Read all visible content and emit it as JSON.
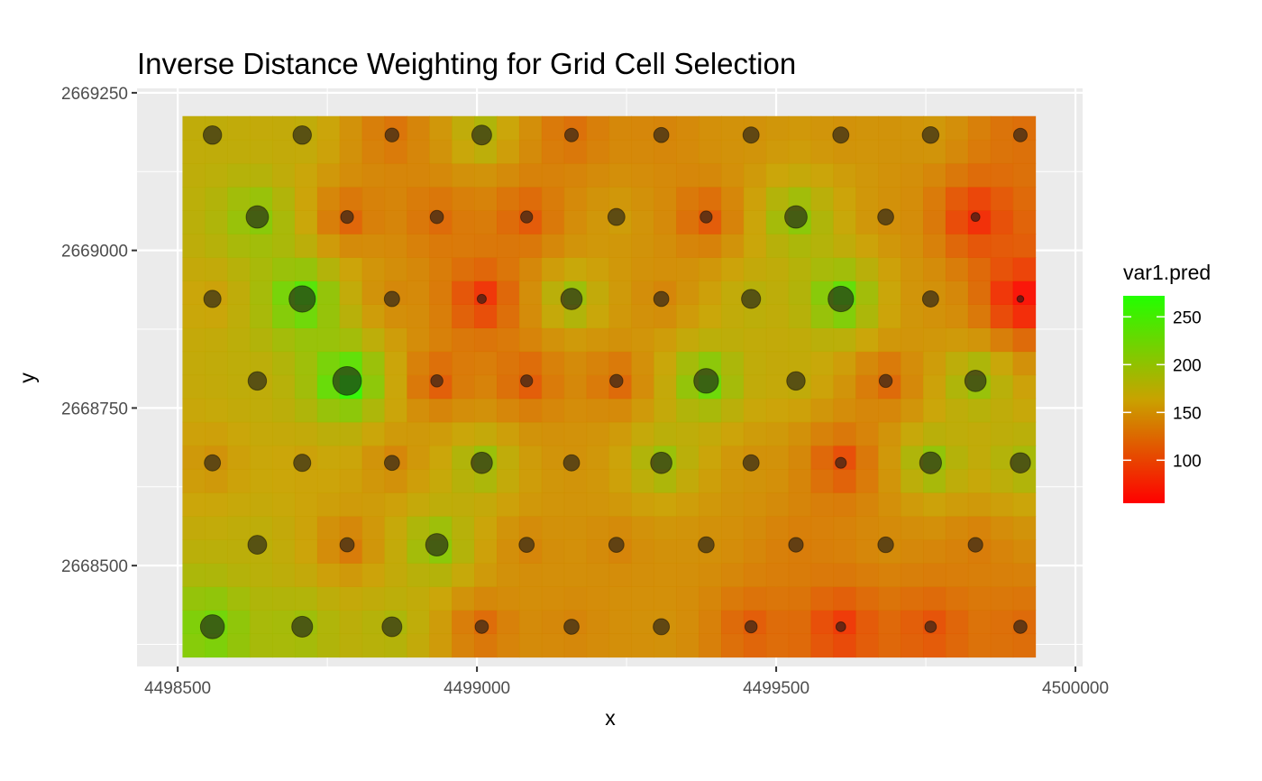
{
  "chart_data": {
    "type": "heatmap",
    "title": "Inverse Distance Weighting for Grid Cell Selection",
    "xlabel": "x",
    "ylabel": "y",
    "xlim": [
      4498432,
      4500012
    ],
    "ylim": [
      2668340,
      2669257
    ],
    "x_ticks": [
      4498500,
      4499000,
      4499500,
      4500000
    ],
    "y_ticks": [
      2668500,
      2668750,
      2669000,
      2669250
    ],
    "x_tick_labels": [
      "4498500",
      "4499000",
      "4499500",
      "4500000"
    ],
    "y_tick_labels": [
      "2668500",
      "2668750",
      "2669000",
      "2669250"
    ],
    "grid_extent": {
      "x": [
        4498508,
        4499933
      ],
      "y": [
        2668355,
        2669213
      ]
    },
    "grid_cols": 38,
    "grid_rows": 23,
    "legend": {
      "title": "var1.pred",
      "range": [
        55,
        272
      ],
      "ticks": [
        100,
        150,
        200,
        250
      ],
      "tick_labels": [
        "100",
        "150",
        "200",
        "250"
      ],
      "low_color": "#ff0000",
      "mid_color": "#c9a200",
      "high_color": "#22ff00"
    },
    "grid_on": true,
    "legend_position": "right",
    "panel_background": "#ebebeb",
    "point_color": "#1a1a1a",
    "points": [
      {
        "x": 4498558,
        "y": 2669183,
        "value": 172
      },
      {
        "x": 4498708,
        "y": 2669183,
        "value": 172
      },
      {
        "x": 4498858,
        "y": 2669183,
        "value": 128
      },
      {
        "x": 4499008,
        "y": 2669183,
        "value": 185
      },
      {
        "x": 4499158,
        "y": 2669183,
        "value": 125
      },
      {
        "x": 4499308,
        "y": 2669183,
        "value": 140
      },
      {
        "x": 4499458,
        "y": 2669183,
        "value": 150
      },
      {
        "x": 4499608,
        "y": 2669183,
        "value": 150
      },
      {
        "x": 4499758,
        "y": 2669183,
        "value": 155
      },
      {
        "x": 4499908,
        "y": 2669183,
        "value": 125
      },
      {
        "x": 4498633,
        "y": 2669053,
        "value": 210
      },
      {
        "x": 4498783,
        "y": 2669053,
        "value": 118
      },
      {
        "x": 4498933,
        "y": 2669053,
        "value": 122
      },
      {
        "x": 4499083,
        "y": 2669053,
        "value": 110
      },
      {
        "x": 4499233,
        "y": 2669053,
        "value": 158
      },
      {
        "x": 4499383,
        "y": 2669053,
        "value": 110
      },
      {
        "x": 4499533,
        "y": 2669053,
        "value": 210
      },
      {
        "x": 4499683,
        "y": 2669053,
        "value": 148
      },
      {
        "x": 4499833,
        "y": 2669053,
        "value": 80
      },
      {
        "x": 4498558,
        "y": 2668923,
        "value": 160
      },
      {
        "x": 4498708,
        "y": 2668923,
        "value": 248
      },
      {
        "x": 4498858,
        "y": 2668923,
        "value": 142
      },
      {
        "x": 4499008,
        "y": 2668923,
        "value": 82
      },
      {
        "x": 4499158,
        "y": 2668923,
        "value": 200
      },
      {
        "x": 4499308,
        "y": 2668923,
        "value": 140
      },
      {
        "x": 4499458,
        "y": 2668923,
        "value": 178
      },
      {
        "x": 4499608,
        "y": 2668923,
        "value": 240
      },
      {
        "x": 4499758,
        "y": 2668923,
        "value": 150
      },
      {
        "x": 4499908,
        "y": 2668923,
        "value": 60
      },
      {
        "x": 4498633,
        "y": 2668793,
        "value": 172
      },
      {
        "x": 4498783,
        "y": 2668793,
        "value": 270
      },
      {
        "x": 4498933,
        "y": 2668793,
        "value": 112
      },
      {
        "x": 4499083,
        "y": 2668793,
        "value": 110
      },
      {
        "x": 4499233,
        "y": 2668793,
        "value": 120
      },
      {
        "x": 4499383,
        "y": 2668793,
        "value": 232
      },
      {
        "x": 4499533,
        "y": 2668793,
        "value": 172
      },
      {
        "x": 4499683,
        "y": 2668793,
        "value": 120
      },
      {
        "x": 4499833,
        "y": 2668793,
        "value": 200
      },
      {
        "x": 4498558,
        "y": 2668663,
        "value": 150
      },
      {
        "x": 4498708,
        "y": 2668663,
        "value": 160
      },
      {
        "x": 4498858,
        "y": 2668663,
        "value": 140
      },
      {
        "x": 4499008,
        "y": 2668663,
        "value": 200
      },
      {
        "x": 4499158,
        "y": 2668663,
        "value": 150
      },
      {
        "x": 4499308,
        "y": 2668663,
        "value": 200
      },
      {
        "x": 4499458,
        "y": 2668663,
        "value": 150
      },
      {
        "x": 4499608,
        "y": 2668663,
        "value": 100
      },
      {
        "x": 4499758,
        "y": 2668663,
        "value": 205
      },
      {
        "x": 4499908,
        "y": 2668663,
        "value": 190
      },
      {
        "x": 4498633,
        "y": 2668533,
        "value": 175
      },
      {
        "x": 4498783,
        "y": 2668533,
        "value": 132
      },
      {
        "x": 4498933,
        "y": 2668533,
        "value": 210
      },
      {
        "x": 4499083,
        "y": 2668533,
        "value": 140
      },
      {
        "x": 4499233,
        "y": 2668533,
        "value": 140
      },
      {
        "x": 4499383,
        "y": 2668533,
        "value": 148
      },
      {
        "x": 4499533,
        "y": 2668533,
        "value": 135
      },
      {
        "x": 4499683,
        "y": 2668533,
        "value": 145
      },
      {
        "x": 4499833,
        "y": 2668533,
        "value": 135
      },
      {
        "x": 4498558,
        "y": 2668403,
        "value": 225
      },
      {
        "x": 4498708,
        "y": 2668403,
        "value": 195
      },
      {
        "x": 4498858,
        "y": 2668403,
        "value": 185
      },
      {
        "x": 4499008,
        "y": 2668403,
        "value": 122
      },
      {
        "x": 4499158,
        "y": 2668403,
        "value": 140
      },
      {
        "x": 4499308,
        "y": 2668403,
        "value": 150
      },
      {
        "x": 4499458,
        "y": 2668403,
        "value": 112
      },
      {
        "x": 4499608,
        "y": 2668403,
        "value": 88
      },
      {
        "x": 4499758,
        "y": 2668403,
        "value": 105
      },
      {
        "x": 4499908,
        "y": 2668403,
        "value": 122
      }
    ]
  }
}
